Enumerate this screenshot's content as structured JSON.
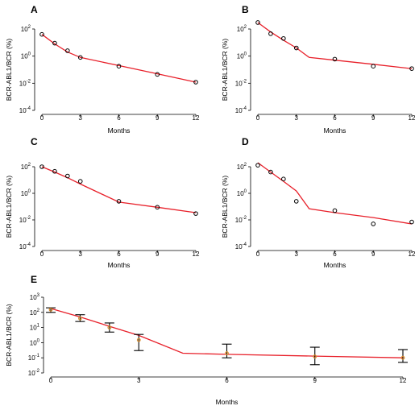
{
  "chart_data": [
    {
      "panel_label": "A",
      "type": "line",
      "xlabel": "Months",
      "ylabel": "BCR-ABL1/BCR (%)",
      "x_ticks": [
        "0",
        "3",
        "6",
        "9",
        "12"
      ],
      "y_ticks": [
        "10^2",
        "10^0",
        "10^-2",
        "10^-4"
      ],
      "y_scale": "log",
      "xlim": [
        0,
        12
      ],
      "ylim": [
        0.0001,
        100
      ],
      "observed": {
        "x": [
          0,
          1,
          2,
          3,
          6,
          9,
          12
        ],
        "y": [
          40,
          9,
          2.5,
          0.8,
          0.18,
          0.045,
          0.012
        ]
      },
      "fit": {
        "x": [
          0,
          1,
          2,
          3,
          6,
          9,
          12
        ],
        "y": [
          40,
          8,
          2,
          0.8,
          0.2,
          0.05,
          0.012
        ]
      }
    },
    {
      "panel_label": "B",
      "type": "line",
      "xlabel": "Months",
      "ylabel": "BCR-ABL1/BCR (%)",
      "x_ticks": [
        "0",
        "3",
        "6",
        "9",
        "12"
      ],
      "y_ticks": [
        "10^2",
        "10^0",
        "10^-2",
        "10^-4"
      ],
      "y_scale": "log",
      "xlim": [
        0,
        12
      ],
      "ylim": [
        0.0001,
        100
      ],
      "observed": {
        "x": [
          0,
          1,
          2,
          3,
          6,
          9,
          12
        ],
        "y": [
          300,
          45,
          20,
          4,
          0.6,
          0.18,
          0.12
        ]
      },
      "fit": {
        "x": [
          0,
          1,
          2,
          3,
          4,
          6,
          9,
          12
        ],
        "y": [
          300,
          60,
          15,
          4,
          0.8,
          0.5,
          0.25,
          0.12
        ]
      }
    },
    {
      "panel_label": "C",
      "type": "line",
      "xlabel": "Months",
      "ylabel": "BCR-ABL1/BCR (%)",
      "x_ticks": [
        "0",
        "3",
        "6",
        "9",
        "12"
      ],
      "y_ticks": [
        "10^2",
        "10^0",
        "10^-2",
        "10^-4"
      ],
      "y_scale": "log",
      "xlim": [
        0,
        12
      ],
      "ylim": [
        0.0001,
        100
      ],
      "observed": {
        "x": [
          0,
          1,
          2,
          3,
          6,
          9,
          12
        ],
        "y": [
          100,
          45,
          20,
          8,
          0.25,
          0.09,
          0.03
        ]
      },
      "fit": {
        "x": [
          0,
          1,
          2,
          3,
          6,
          9,
          12
        ],
        "y": [
          100,
          40,
          15,
          5,
          0.22,
          0.09,
          0.035
        ]
      }
    },
    {
      "panel_label": "D",
      "type": "line",
      "xlabel": "Months",
      "ylabel": "BCR-ABL1/BCR (%)",
      "x_ticks": [
        "0",
        "3",
        "6",
        "9",
        "12"
      ],
      "y_ticks": [
        "10^2",
        "10^0",
        "10^-2",
        "10^-4"
      ],
      "y_scale": "log",
      "xlim": [
        0,
        12
      ],
      "ylim": [
        0.0001,
        100
      ],
      "observed": {
        "x": [
          0,
          1,
          2,
          3,
          6,
          9,
          12
        ],
        "y": [
          130,
          40,
          12,
          0.25,
          0.05,
          0.005,
          0.007
        ]
      },
      "fit": {
        "x": [
          0,
          1,
          2,
          3,
          4,
          6,
          9,
          12
        ],
        "y": [
          200,
          40,
          8,
          1.5,
          0.07,
          0.035,
          0.015,
          0.005
        ]
      }
    },
    {
      "panel_label": "E",
      "type": "line",
      "xlabel": "Months",
      "ylabel": "BCR-ABL1/BCR (%)",
      "x_ticks": [
        "0",
        "3",
        "6",
        "9",
        "12"
      ],
      "y_ticks": [
        "10^3",
        "10^2",
        "10^1",
        "10^0",
        "10^-1",
        "10^-2"
      ],
      "y_scale": "log",
      "xlim": [
        0,
        12
      ],
      "ylim": [
        0.01,
        1000
      ],
      "observed_median": {
        "x": [
          0,
          1,
          2,
          3,
          6,
          9,
          12
        ],
        "y": [
          150,
          40,
          10,
          1.5,
          0.2,
          0.12,
          0.1
        ]
      },
      "error_low": [
        100,
        25,
        5,
        0.3,
        0.1,
        0.035,
        0.05
      ],
      "error_high": [
        200,
        70,
        20,
        3.5,
        0.8,
        0.5,
        0.35
      ],
      "fit": {
        "x": [
          0,
          1,
          2,
          3,
          4.5,
          6,
          9,
          12
        ],
        "y": [
          180,
          50,
          12,
          3,
          0.2,
          0.17,
          0.13,
          0.1
        ]
      }
    }
  ]
}
